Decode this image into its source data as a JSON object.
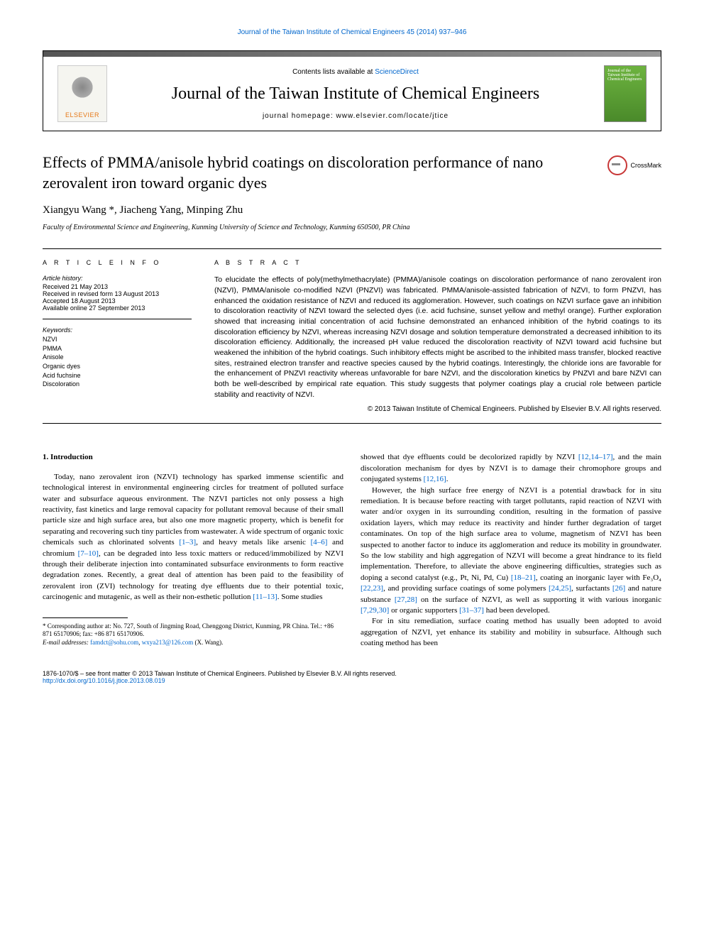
{
  "top_citation": "Journal of the Taiwan Institute of Chemical Engineers 45 (2014) 937–946",
  "header": {
    "contents_prefix": "Contents lists available at ",
    "contents_link": "ScienceDirect",
    "journal_name": "Journal of the Taiwan Institute of Chemical Engineers",
    "homepage_label": "journal homepage: www.elsevier.com/locate/jtice",
    "publisher": "ELSEVIER"
  },
  "crossmark_label": "CrossMark",
  "title": "Effects of PMMA/anisole hybrid coatings on discoloration performance of nano zerovalent iron toward organic dyes",
  "authors": "Xiangyu Wang *, Jiacheng Yang, Minping Zhu",
  "affiliation": "Faculty of Environmental Science and Engineering, Kunming University of Science and Technology, Kunming 650500, PR China",
  "article_info": {
    "heading": "A R T I C L E   I N F O",
    "history_label": "Article history:",
    "received": "Received 21 May 2013",
    "revised": "Received in revised form 13 August 2013",
    "accepted": "Accepted 18 August 2013",
    "online": "Available online 27 September 2013",
    "keywords_label": "Keywords:",
    "keywords": [
      "NZVI",
      "PMMA",
      "Anisole",
      "Organic dyes",
      "Acid fuchsine",
      "Discoloration"
    ]
  },
  "abstract": {
    "heading": "A B S T R A C T",
    "text": "To elucidate the effects of poly(methylmethacrylate) (PMMA)/anisole coatings on discoloration performance of nano zerovalent iron (NZVI), PMMA/anisole co-modified NZVI (PNZVI) was fabricated. PMMA/anisole-assisted fabrication of NZVI, to form PNZVI, has enhanced the oxidation resistance of NZVI and reduced its agglomeration. However, such coatings on NZVI surface gave an inhibition to discoloration reactivity of NZVI toward the selected dyes (i.e. acid fuchsine, sunset yellow and methyl orange). Further exploration showed that increasing initial concentration of acid fuchsine demonstrated an enhanced inhibition of the hybrid coatings to its discoloration efficiency by NZVI, whereas increasing NZVI dosage and solution temperature demonstrated a decreased inhibition to its discoloration efficiency. Additionally, the increased pH value reduced the discoloration reactivity of NZVI toward acid fuchsine but weakened the inhibition of the hybrid coatings. Such inhibitory effects might be ascribed to the inhibited mass transfer, blocked reactive sites, restrained electron transfer and reactive species caused by the hybrid coatings. Interestingly, the chloride ions are favorable for the enhancement of PNZVI reactivity whereas unfavorable for bare NZVI, and the discoloration kinetics by PNZVI and bare NZVI can both be well-described by empirical rate equation. This study suggests that polymer coatings play a crucial role between particle stability and reactivity of NZVI.",
    "copyright": "© 2013 Taiwan Institute of Chemical Engineers. Published by Elsevier B.V. All rights reserved."
  },
  "body": {
    "section_heading": "1. Introduction",
    "col1_p1a": "Today, nano zerovalent iron (NZVI) technology has sparked immense scientific and technological interest in environmental engineering circles for treatment of polluted surface water and subsurface aqueous environment. The NZVI particles not only possess a high reactivity, fast kinetics and large removal capacity for pollutant removal because of their small particle size and high surface area, but also one more magnetic property, which is benefit for separating and recovering such tiny particles from wastewater. A wide spectrum of organic toxic chemicals such as chlorinated solvents ",
    "ref1": "[1–3]",
    "col1_p1b": ", and heavy metals like arsenic ",
    "ref2": "[4–6]",
    "col1_p1c": " and chromium ",
    "ref3": "[7–10]",
    "col1_p1d": ", can be degraded into less toxic matters or reduced/immobilized by NZVI through their deliberate injection into contaminated subsurface environments to form reactive degradation zones. Recently, a great deal of attention has been paid to the feasibility of zerovalent iron (ZVI) technology for treating dye effluents due to their potential toxic, carcinogenic and mutagenic, as well as their non-esthetic pollution ",
    "ref4": "[11–13]",
    "col1_p1e": ". Some studies",
    "col2_p1a": "showed that dye effluents could be decolorized rapidly by NZVI ",
    "ref5": "[12,14–17]",
    "col2_p1b": ", and the main discoloration mechanism for dyes by NZVI is to damage their chromophore groups and conjugated systems ",
    "ref6": "[12,16]",
    "col2_p1c": ".",
    "col2_p2a": "However, the high surface free energy of NZVI is a potential drawback for in situ remediation. It is because before reacting with target pollutants, rapid reaction of NZVI with water and/or oxygen in its surrounding condition, resulting in the formation of passive oxidation layers, which may reduce its reactivity and hinder further degradation of target contaminates. On top of the high surface area to volume, magnetism of NZVI has been suspected to another factor to induce its agglomeration and reduce its mobility in groundwater. So the low stability and high aggregation of NZVI will become a great hindrance to its field implementation. Therefore, to alleviate the above engineering difficulties, strategies such as doping a second catalyst (e.g., Pt, Ni, Pd, Cu) ",
    "ref7": "[18–21]",
    "col2_p2b": ", coating an inorganic layer with Fe₃O₄ ",
    "ref8": "[22,23]",
    "col2_p2c": ", and providing surface coatings of some polymers ",
    "ref9": "[24,25]",
    "col2_p2d": ", surfactants ",
    "ref10": "[26]",
    "col2_p2e": " and nature substance ",
    "ref11": "[27,28]",
    "col2_p2f": " on the surface of NZVI, as well as supporting it with various inorganic ",
    "ref12": "[7,29,30]",
    "col2_p2g": " or organic supporters ",
    "ref13": "[31–37]",
    "col2_p2h": " had been developed.",
    "col2_p3": "For in situ remediation, surface coating method has usually been adopted to avoid aggregation of NZVI, yet enhance its stability and mobility in subsurface. Although such coating method has been"
  },
  "footnote": {
    "corresponding": "* Corresponding author at: No. 727, South of Jingming Road, Chenggong District, Kunming, PR China. Tel.: +86 871 65170906; fax: +86 871 65170906.",
    "email_label": "E-mail addresses: ",
    "email1": "famdct@sohu.com",
    "email_sep": ", ",
    "email2": "wxya213@126.com",
    "email_author": " (X. Wang)."
  },
  "footer": {
    "issn_line": "1876-1070/$ – see front matter © 2013 Taiwan Institute of Chemical Engineers. Published by Elsevier B.V. All rights reserved.",
    "doi": "http://dx.doi.org/10.1016/j.jtice.2013.08.019"
  }
}
